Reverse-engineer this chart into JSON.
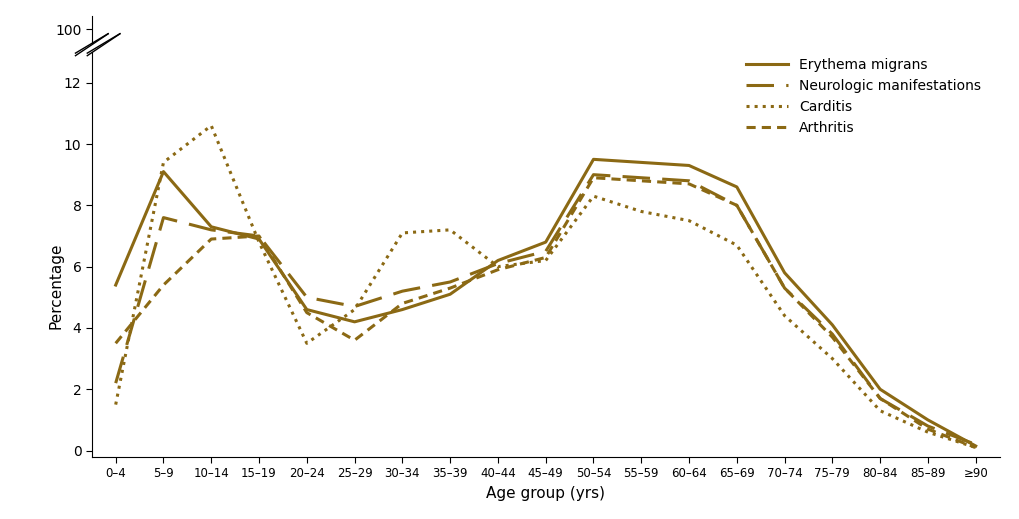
{
  "age_groups": [
    "0–4",
    "5–9",
    "10–14",
    "15–19",
    "20–24",
    "25–29",
    "30–34",
    "35–39",
    "40–44",
    "45–49",
    "50–54",
    "55–59",
    "60–64",
    "65–69",
    "70–74",
    "75–79",
    "80–84",
    "85–89",
    "≥90"
  ],
  "erythema_migrans": [
    5.4,
    9.1,
    7.3,
    6.9,
    4.6,
    4.2,
    4.6,
    5.1,
    6.2,
    6.8,
    9.5,
    9.4,
    9.3,
    8.6,
    5.8,
    4.1,
    2.0,
    1.0,
    0.15
  ],
  "neurologic": [
    2.2,
    7.6,
    7.2,
    7.0,
    5.0,
    4.7,
    5.2,
    5.5,
    6.1,
    6.5,
    9.0,
    8.9,
    8.8,
    8.0,
    5.3,
    3.8,
    1.7,
    0.8,
    0.2
  ],
  "carditis": [
    1.5,
    9.4,
    10.6,
    6.8,
    3.5,
    4.6,
    7.1,
    7.2,
    6.0,
    6.2,
    8.3,
    7.8,
    7.5,
    6.7,
    4.4,
    3.0,
    1.3,
    0.6,
    0.1
  ],
  "arthritis": [
    3.5,
    5.4,
    6.9,
    7.0,
    4.5,
    3.6,
    4.8,
    5.3,
    5.9,
    6.3,
    8.9,
    8.8,
    8.7,
    8.0,
    5.3,
    3.7,
    1.7,
    0.7,
    0.1
  ],
  "color": "#8B6914",
  "xlabel": "Age group (yrs)",
  "ylabel": "Percentage",
  "legend_labels": [
    "Erythema migrans",
    "Neurologic manifestations",
    "Carditis",
    "Arthritis"
  ]
}
